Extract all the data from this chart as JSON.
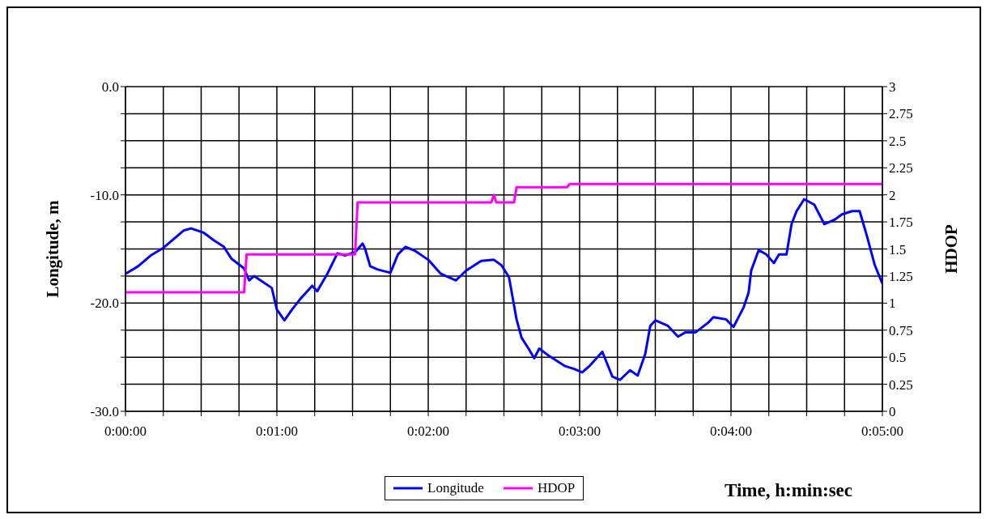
{
  "chart_data": {
    "type": "line",
    "xlabel": "Time, h:min:sec",
    "ylabel": "Longitude, m",
    "y2label": "HDOP",
    "grid": true,
    "legend": "bottom",
    "marker": "none",
    "line_style": "solid",
    "xlim": [
      0,
      0.083333
    ],
    "xticks": [
      {
        "value": 0,
        "label": "0:00:00"
      },
      {
        "value": 0.004167,
        "label": null
      },
      {
        "value": 0.008333,
        "label": null
      },
      {
        "value": 0.0125,
        "label": null
      },
      {
        "value": 0.016667,
        "label": "0:01:00"
      },
      {
        "value": 0.020833,
        "label": null
      },
      {
        "value": 0.025,
        "label": null
      },
      {
        "value": 0.029167,
        "label": null
      },
      {
        "value": 0.033333,
        "label": "0:02:00"
      },
      {
        "value": 0.0375,
        "label": null
      },
      {
        "value": 0.041667,
        "label": null
      },
      {
        "value": 0.045833,
        "label": null
      },
      {
        "value": 0.05,
        "label": "0:03:00"
      },
      {
        "value": 0.054167,
        "label": null
      },
      {
        "value": 0.058333,
        "label": null
      },
      {
        "value": 0.0625,
        "label": null
      },
      {
        "value": 0.066667,
        "label": "0:04:00"
      },
      {
        "value": 0.070833,
        "label": null
      },
      {
        "value": 0.075,
        "label": null
      },
      {
        "value": 0.079167,
        "label": null
      },
      {
        "value": 0.083333,
        "label": "0:05:00"
      }
    ],
    "ylim": [
      -30,
      0
    ],
    "yticks": [
      {
        "value": -30,
        "label": "-30.0"
      },
      {
        "value": -27.5,
        "label": null
      },
      {
        "value": -25,
        "label": null
      },
      {
        "value": -22.5,
        "label": null
      },
      {
        "value": -20,
        "label": "-20.0"
      },
      {
        "value": -17.5,
        "label": null
      },
      {
        "value": -15,
        "label": null
      },
      {
        "value": -12.5,
        "label": null
      },
      {
        "value": -10,
        "label": "-10.0"
      },
      {
        "value": -7.5,
        "label": null
      },
      {
        "value": -5,
        "label": null
      },
      {
        "value": -2.5,
        "label": null
      },
      {
        "value": 0,
        "label": "0.0"
      }
    ],
    "y2lim": [
      0,
      3
    ],
    "y2ticks": [
      0,
      0.25,
      0.5,
      0.75,
      1,
      1.25,
      1.5,
      1.75,
      2,
      2.25,
      2.5,
      2.75,
      3
    ],
    "series": [
      {
        "name": "Longitude",
        "color": "#0000ff",
        "x": [
          0,
          0.001389,
          0.002778,
          0.004167,
          0.005556,
          0.006389,
          0.007222,
          0.008611,
          0.009722,
          0.010833,
          0.011667,
          0.013056,
          0.013611,
          0.014167,
          0.016111,
          0.016667,
          0.0175,
          0.018333,
          0.019167,
          0.020556,
          0.021111,
          0.022222,
          0.023333,
          0.024167,
          0.025278,
          0.026111,
          0.026389,
          0.026944,
          0.027778,
          0.029167,
          0.03,
          0.030833,
          0.031944,
          0.033333,
          0.034722,
          0.036389,
          0.0375,
          0.039167,
          0.040556,
          0.041389,
          0.042222,
          0.043056,
          0.043611,
          0.044444,
          0.045,
          0.045556,
          0.046667,
          0.048333,
          0.049444,
          0.050278,
          0.051111,
          0.0525,
          0.053611,
          0.054444,
          0.055556,
          0.056389,
          0.057222,
          0.057778,
          0.058333,
          0.059722,
          0.060833,
          0.061667,
          0.062778,
          0.064167,
          0.064722,
          0.066111,
          0.066944,
          0.068056,
          0.068611,
          0.068889,
          0.069722,
          0.070556,
          0.071389,
          0.071944,
          0.072778,
          0.073333,
          0.073889,
          0.074722,
          0.075833,
          0.076944,
          0.078056,
          0.078889,
          0.08,
          0.080833,
          0.081667,
          0.0825,
          0.083333
        ],
        "values": [
          -17.3,
          -16.6,
          -15.6,
          -14.9,
          -13.9,
          -13.3,
          -13.1,
          -13.5,
          -14.2,
          -14.8,
          -15.9,
          -16.8,
          -17.9,
          -17.5,
          -18.6,
          -20.6,
          -21.6,
          -20.6,
          -19.7,
          -18.4,
          -18.9,
          -17.3,
          -15.4,
          -15.6,
          -15.3,
          -14.5,
          -15.0,
          -16.6,
          -16.9,
          -17.2,
          -15.5,
          -14.8,
          -15.2,
          -16.0,
          -17.3,
          -17.9,
          -17.0,
          -16.1,
          -16.0,
          -16.5,
          -17.6,
          -21.5,
          -23.2,
          -24.3,
          -25.1,
          -24.2,
          -24.9,
          -25.8,
          -26.1,
          -26.4,
          -25.8,
          -24.5,
          -26.8,
          -27.1,
          -26.2,
          -26.7,
          -24.7,
          -22.1,
          -21.6,
          -22.1,
          -23.1,
          -22.7,
          -22.7,
          -21.8,
          -21.3,
          -21.5,
          -22.2,
          -20.4,
          -19.0,
          -17.0,
          -15.1,
          -15.5,
          -16.3,
          -15.5,
          -15.5,
          -12.7,
          -11.5,
          -10.4,
          -10.9,
          -12.7,
          -12.3,
          -11.8,
          -11.5,
          -11.5,
          -13.9,
          -16.5,
          -18.2
        ]
      },
      {
        "name": "HDOP",
        "color": "#ff00ff",
        "axis": "y2",
        "x": [
          0,
          0.013056,
          0.013333,
          0.025278,
          0.025556,
          0.040278,
          0.040556,
          0.040833,
          0.042778,
          0.043056,
          0.048611,
          0.048889,
          0.083333
        ],
        "values": [
          1.1,
          1.1,
          1.45,
          1.45,
          1.93,
          1.93,
          2.0,
          1.93,
          1.93,
          2.07,
          2.07,
          2.1,
          2.1
        ]
      }
    ]
  }
}
